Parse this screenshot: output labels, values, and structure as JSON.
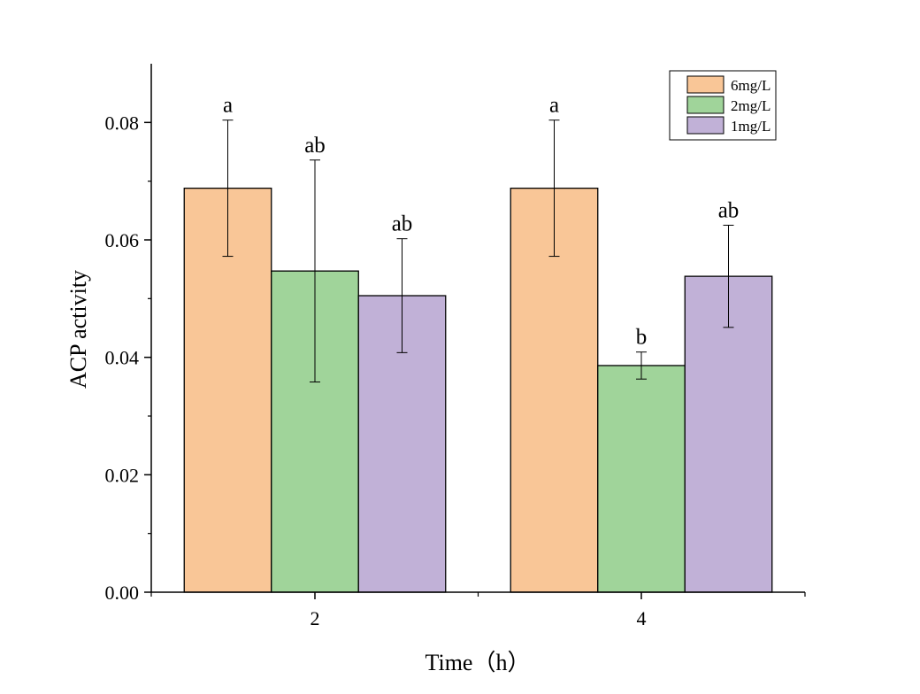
{
  "chart_data": {
    "type": "bar",
    "categories": [
      "2",
      "4"
    ],
    "xlabel": "Time（h）",
    "ylabel": "ACP activity",
    "ylim": [
      0,
      0.09
    ],
    "yticks": [
      "0.00",
      "0.02",
      "0.04",
      "0.06",
      "0.08"
    ],
    "legend_position": "top-right",
    "grid": false,
    "series": [
      {
        "name": "6mg/L",
        "color": "#F9C697",
        "values": [
          0.0688,
          0.0688
        ],
        "errors": [
          0.0116,
          0.0116
        ],
        "labels": [
          "a",
          "a"
        ]
      },
      {
        "name": "2mg/L",
        "color": "#A0D49A",
        "values": [
          0.0547,
          0.0386
        ],
        "errors": [
          0.0189,
          0.0023
        ],
        "labels": [
          "ab",
          "b"
        ]
      },
      {
        "name": "1mg/L",
        "color": "#C1B1D7",
        "values": [
          0.0505,
          0.0538
        ],
        "errors": [
          0.0097,
          0.0087
        ],
        "labels": [
          "ab",
          "ab"
        ]
      }
    ]
  }
}
